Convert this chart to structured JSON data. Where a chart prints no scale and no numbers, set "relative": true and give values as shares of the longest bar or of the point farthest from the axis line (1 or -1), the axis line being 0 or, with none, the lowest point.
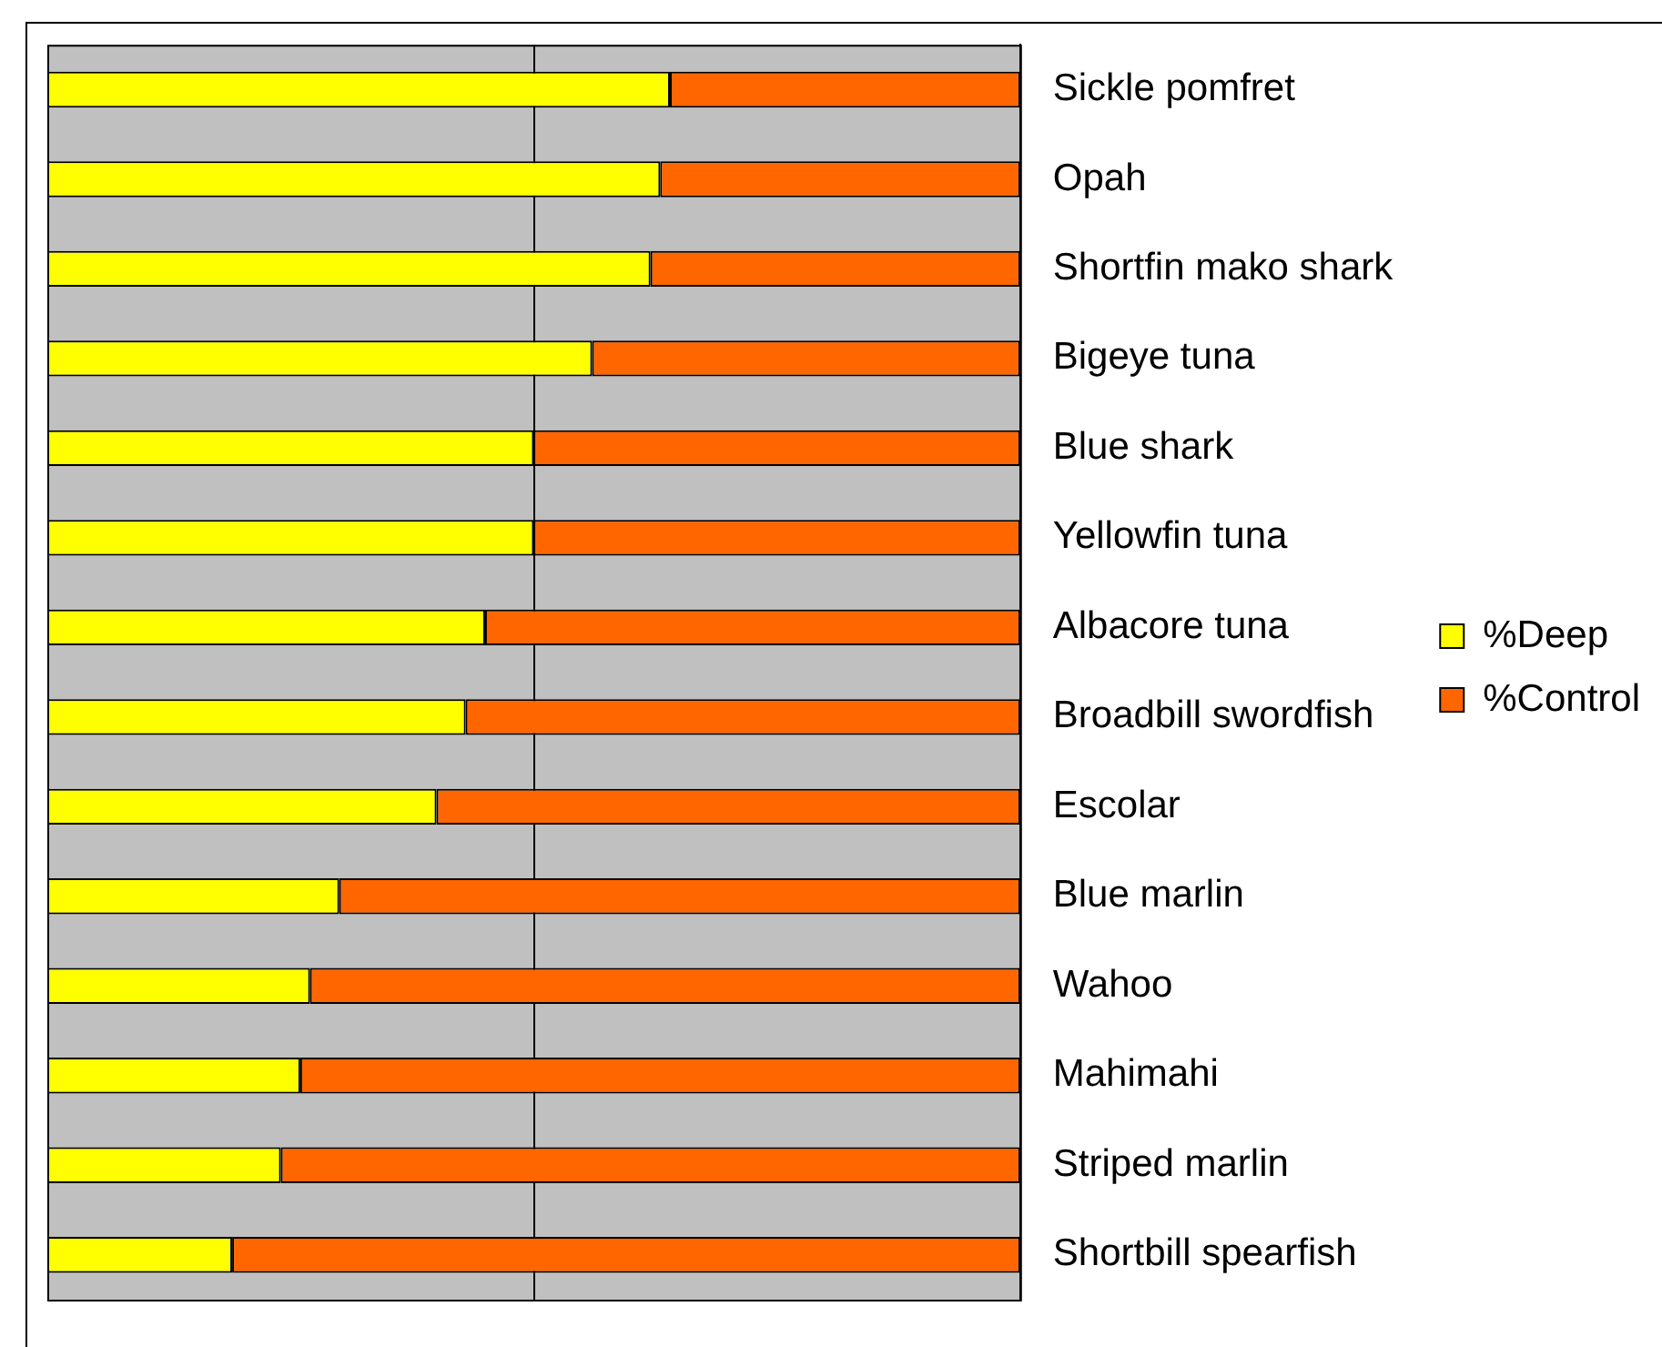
{
  "chart_data": {
    "type": "bar",
    "orientation": "horizontal",
    "stacked": true,
    "relative": true,
    "legend": "right",
    "ref_lines": [
      {
        "axis": "x",
        "value": 0.5
      }
    ],
    "categories": [
      "Sickle pomfret",
      "Opah",
      "Shortfin mako shark",
      "Bigeye tuna",
      "Blue shark",
      "Yellowfin tuna",
      "Albacore tuna",
      "Broadbill swordfish",
      "Escolar",
      "Blue marlin",
      "Wahoo",
      "Mahimahi",
      "Striped marlin",
      "Shortbill spearfish"
    ],
    "series": [
      {
        "name": "%Deep",
        "color": "#ffff00",
        "values": [
          0.64,
          0.63,
          0.62,
          0.56,
          0.5,
          0.5,
          0.45,
          0.43,
          0.4,
          0.3,
          0.27,
          0.26,
          0.24,
          0.19
        ]
      },
      {
        "name": "%Control",
        "color": "#ff6600",
        "values": [
          0.36,
          0.37,
          0.38,
          0.44,
          0.5,
          0.5,
          0.55,
          0.57,
          0.6,
          0.7,
          0.73,
          0.74,
          0.76,
          0.81
        ]
      }
    ]
  }
}
